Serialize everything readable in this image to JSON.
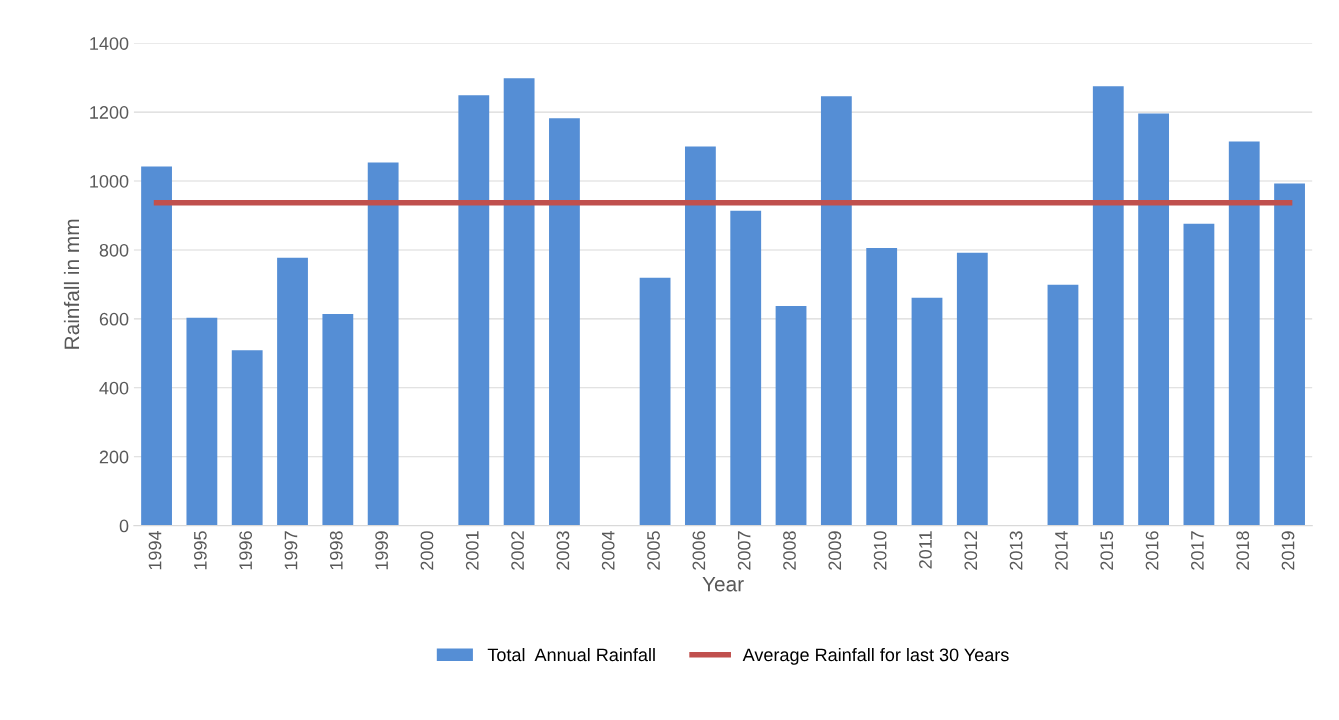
{
  "chart_data": {
    "type": "bar",
    "xlabel": "Year",
    "ylabel": "Rainfall in mm",
    "categories": [
      "1994",
      "1995",
      "1996",
      "1997",
      "1998",
      "1999",
      "2000",
      "2001",
      "2002",
      "2003",
      "2004",
      "2005",
      "2006",
      "2007",
      "2008",
      "2009",
      "2010",
      "2011",
      "2012",
      "2013",
      "2014",
      "2015",
      "2016",
      "2017",
      "2018",
      "2019"
    ],
    "series": [
      {
        "name": "Total  Annual Rainfall",
        "color": "#558ed5",
        "values": [
          1042,
          603,
          509,
          777,
          614,
          1054,
          null,
          1249,
          1298,
          1182,
          null,
          719,
          1100,
          914,
          637,
          1246,
          806,
          661,
          792,
          null,
          699,
          1275,
          1196,
          876,
          1115,
          993
        ]
      },
      {
        "name": "Average Rainfall for last 30 Years",
        "type": "line",
        "color": "#c0504d",
        "values": [
          937,
          937,
          937,
          937,
          937,
          937,
          937,
          937,
          937,
          937,
          937,
          937,
          937,
          937,
          937,
          937,
          937,
          937,
          937,
          937,
          937,
          937,
          937,
          937,
          937,
          937
        ]
      }
    ],
    "ylim": [
      0,
      1400
    ],
    "yticks": [
      0,
      200,
      400,
      600,
      800,
      1000,
      1200,
      1400
    ],
    "grid": "y",
    "legend": "bottom"
  }
}
